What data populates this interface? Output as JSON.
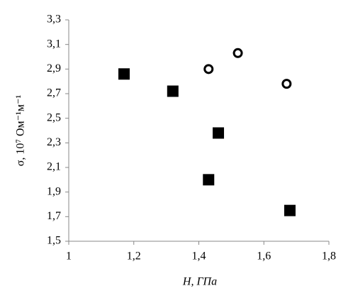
{
  "chart_data": {
    "type": "scatter",
    "x_label": "H, ГПа",
    "y_label": "σ, 10⁷ Ом⁻¹м⁻¹",
    "xlim": [
      1,
      1.8
    ],
    "xticks": [
      1,
      {
        "value": 1.2,
        "label": "1,2"
      },
      {
        "value": 1.4,
        "label": "1,4"
      },
      {
        "value": 1.6,
        "label": "1,6"
      },
      {
        "value": 1.8,
        "label": "1,8"
      }
    ],
    "ylim": [
      1.5,
      3.3
    ],
    "yticks": [
      {
        "value": 1.5,
        "label": "1,5"
      },
      {
        "value": 1.7,
        "label": "1,7"
      },
      {
        "value": 1.9,
        "label": "1,9"
      },
      {
        "value": 2.1,
        "label": "2,1"
      },
      {
        "value": 2.3,
        "label": "2,3"
      },
      {
        "value": 2.5,
        "label": "2,5"
      },
      {
        "value": 2.7,
        "label": "2,7"
      },
      {
        "value": 2.9,
        "label": "2,9"
      },
      {
        "value": 3.1,
        "label": "3,1"
      },
      {
        "value": 3.3,
        "label": "3,3"
      }
    ],
    "grid": false,
    "series": [
      {
        "marker": "square",
        "color": "#000000",
        "x": [
          1.17,
          1.32,
          1.46,
          1.43,
          1.68
        ],
        "values": [
          2.86,
          2.72,
          2.38,
          2.0,
          1.75
        ]
      },
      {
        "marker": "circle",
        "color": "#000000",
        "x": [
          1.43,
          1.52,
          1.67
        ],
        "values": [
          2.9,
          3.03,
          2.78
        ]
      }
    ]
  }
}
